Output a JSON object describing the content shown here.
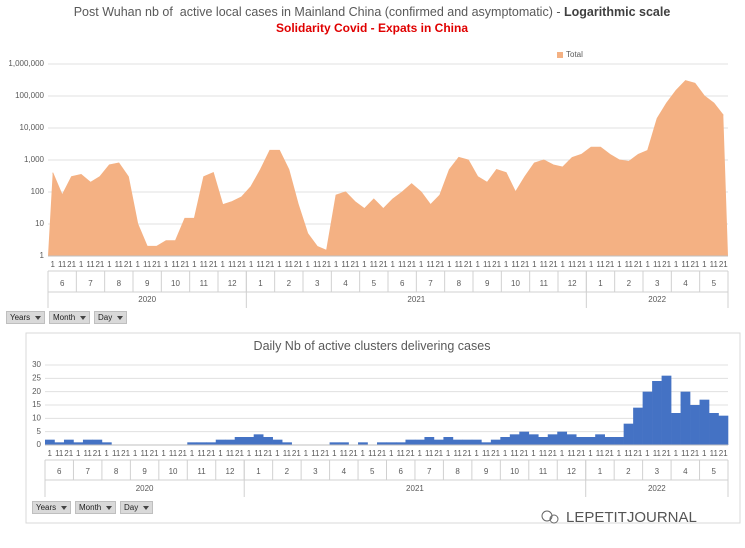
{
  "chart_data": [
    {
      "type": "area",
      "title": "Post Wuhan nb of  active local cases in Mainland China (confirmed and asymptomatic) - ",
      "title_emphasis": "Logarithmic scale",
      "subtitle": "Solidarity Covid - Expats in China",
      "day_labels": [
        "1",
        "11",
        "21"
      ],
      "years": [
        {
          "name": "2020",
          "months": [
            "6",
            "7",
            "8",
            "9",
            "10",
            "11",
            "12"
          ]
        },
        {
          "name": "2021",
          "months": [
            "1",
            "2",
            "3",
            "4",
            "5",
            "6",
            "7",
            "8",
            "9",
            "10",
            "11",
            "12"
          ]
        },
        {
          "name": "2022",
          "months": [
            "1",
            "2",
            "3",
            "4",
            "5"
          ]
        }
      ],
      "series": [
        {
          "name": "Total",
          "color": "#f4b183",
          "values": [
            400,
            80,
            300,
            350,
            200,
            300,
            700,
            800,
            300,
            10,
            2,
            2,
            3,
            3,
            15,
            15,
            300,
            400,
            40,
            50,
            70,
            150,
            500,
            2000,
            2000,
            500,
            40,
            5,
            2,
            1.5,
            80,
            100,
            50,
            30,
            60,
            30,
            60,
            100,
            180,
            100,
            40,
            80,
            500,
            1200,
            1000,
            300,
            200,
            500,
            400,
            100,
            300,
            800,
            1000,
            700,
            600,
            1200,
            1500,
            2500,
            2500,
            1500,
            1000,
            900,
            1500,
            2000,
            20000,
            60000,
            150000,
            300000,
            250000,
            100000,
            60000,
            25000
          ]
        }
      ],
      "log_scale": true,
      "ylim": [
        1,
        1000000
      ],
      "yticks": [
        1,
        10,
        100,
        {
          "value": 1000,
          "label": "1,000"
        },
        {
          "value": 10000,
          "label": "10,000"
        },
        {
          "value": 100000,
          "label": "100,000"
        },
        {
          "value": 1000000,
          "label": "1,000,000"
        }
      ],
      "grid": true,
      "legend": "top-right"
    },
    {
      "type": "bar",
      "title": "Daily Nb of active clusters delivering cases",
      "day_labels": [
        "1",
        "11",
        "21"
      ],
      "years": [
        {
          "name": "2020",
          "months": [
            "6",
            "7",
            "8",
            "9",
            "10",
            "11",
            "12"
          ]
        },
        {
          "name": "2021",
          "months": [
            "1",
            "2",
            "3",
            "4",
            "5",
            "6",
            "7",
            "8",
            "9",
            "10",
            "11",
            "12"
          ]
        },
        {
          "name": "2022",
          "months": [
            "1",
            "2",
            "3",
            "4",
            "5"
          ]
        }
      ],
      "series": [
        {
          "name": "Total",
          "color": "#4472c4",
          "values": [
            2,
            1,
            2,
            1,
            2,
            2,
            1,
            0,
            0,
            0,
            0,
            0,
            0,
            0,
            0,
            1,
            1,
            1,
            2,
            2,
            3,
            3,
            4,
            3,
            2,
            1,
            0,
            0,
            0,
            0,
            1,
            1,
            0,
            1,
            0,
            1,
            1,
            1,
            2,
            2,
            3,
            2,
            3,
            2,
            2,
            2,
            1,
            2,
            3,
            4,
            5,
            4,
            3,
            4,
            5,
            4,
            3,
            3,
            4,
            3,
            3,
            8,
            14,
            20,
            24,
            26,
            12,
            20,
            15,
            17,
            12,
            11
          ]
        }
      ],
      "log_scale": false,
      "ylim": [
        0,
        30
      ],
      "yticks": [
        0,
        5,
        10,
        15,
        20,
        25,
        30
      ],
      "grid": true
    }
  ],
  "pivot_buttons": [
    "Years",
    "Month",
    "Day"
  ],
  "watermark": "LEPETITJOURNAL"
}
